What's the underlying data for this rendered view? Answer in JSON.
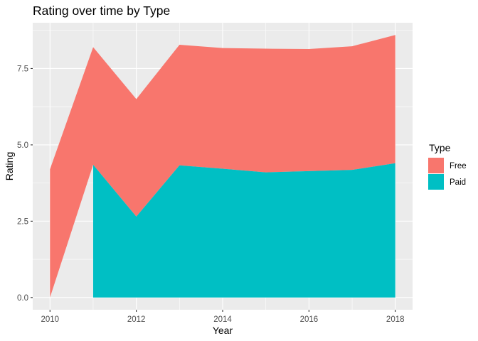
{
  "chart_data": {
    "type": "area",
    "stacked": true,
    "title": "Rating over time by Type",
    "xlabel": "Year",
    "ylabel": "Rating",
    "xlim": [
      2010,
      2018
    ],
    "ylim": [
      0,
      8.6
    ],
    "x_ticks": [
      2010,
      2012,
      2014,
      2016,
      2018
    ],
    "x_tick_labels": [
      "2010",
      "2012",
      "2014",
      "2016",
      "2018"
    ],
    "y_ticks": [
      0,
      2.5,
      5,
      7.5
    ],
    "y_tick_labels": [
      "0.0",
      "2.5",
      "5.0",
      "7.5"
    ],
    "grid": true,
    "legend": {
      "title": "Type",
      "position": "right"
    },
    "series": [
      {
        "name": "Paid",
        "color": "#00BFC4",
        "x": [
          2011,
          2012,
          2013,
          2014,
          2015,
          2016,
          2017,
          2018
        ],
        "values": [
          4.35,
          2.65,
          4.33,
          4.22,
          4.1,
          4.14,
          4.18,
          4.4
        ]
      },
      {
        "name": "Free",
        "color": "#F8766D",
        "x": [
          2010,
          2011,
          2012,
          2013,
          2014,
          2015,
          2016,
          2017,
          2018
        ],
        "values": [
          4.2,
          3.85,
          3.85,
          3.95,
          3.95,
          4.05,
          4.0,
          4.05,
          4.2
        ]
      }
    ]
  }
}
